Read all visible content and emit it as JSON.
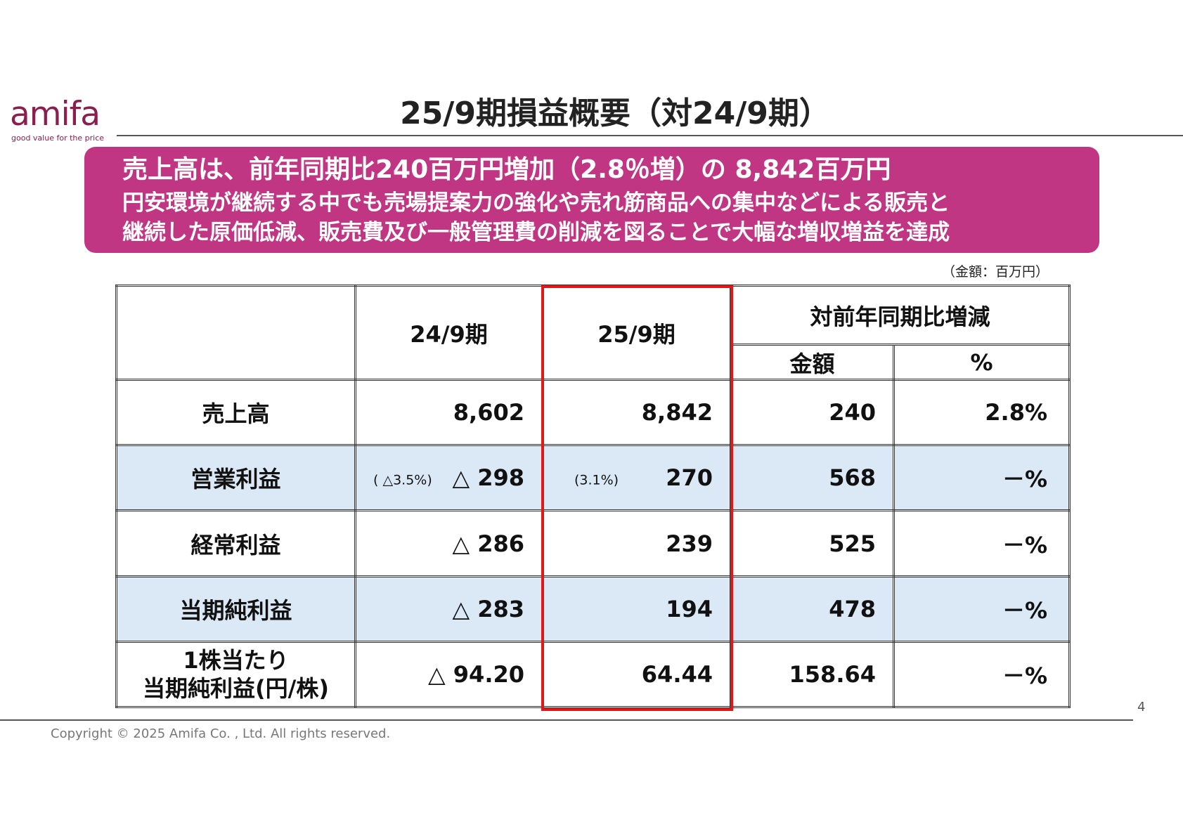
{
  "logo": {
    "word": "amifa",
    "tagline": "good value for the price"
  },
  "title": "25/9期損益概要（対24/9期）",
  "banner": {
    "line1": "売上高は、前年同期比240百万円増加（2.8％増）の 8,842百万円",
    "line2": "円安環境が継続する中でも売場提案力の強化や売れ筋商品への集中などによる販売と",
    "line3": "継続した原価低減、販売費及び一般管理費の削減を図ることで大幅な増収増益を達成"
  },
  "unit_note": "（金額：百万円）",
  "table": {
    "header": {
      "prev": "24/9期",
      "curr": "25/9期",
      "yoy": "対前年同期比増減",
      "amount": "金額",
      "percent": "%"
    },
    "rows": [
      {
        "label": "売上高",
        "prev": "8,602",
        "curr": "8,842",
        "amount": "240",
        "percent": "2.8%",
        "prev_note": "",
        "curr_note": ""
      },
      {
        "label": "営業利益",
        "prev": "△ 298",
        "curr": "270",
        "amount": "568",
        "percent": "－%",
        "prev_note": "( △3.5%)",
        "curr_note": "(3.1%)"
      },
      {
        "label": "経常利益",
        "prev": "△ 286",
        "curr": "239",
        "amount": "525",
        "percent": "－%",
        "prev_note": "",
        "curr_note": ""
      },
      {
        "label": "当期純利益",
        "prev": "△ 283",
        "curr": "194",
        "amount": "478",
        "percent": "－%",
        "prev_note": "",
        "curr_note": ""
      },
      {
        "label_line1": "1株当たり",
        "label_line2": "当期純利益(円/株)",
        "prev": "△ 94.20",
        "curr": "64.44",
        "amount": "158.64",
        "percent": "－%"
      }
    ]
  },
  "page_number": "4",
  "copyright": "Copyright © 2025 Amifa Co. , Ltd. All rights reserved.",
  "colors": {
    "brand": "#8a1f4f",
    "banner": "#c03683",
    "row_shade": "#dbe9f7",
    "highlight": "#e01818"
  }
}
